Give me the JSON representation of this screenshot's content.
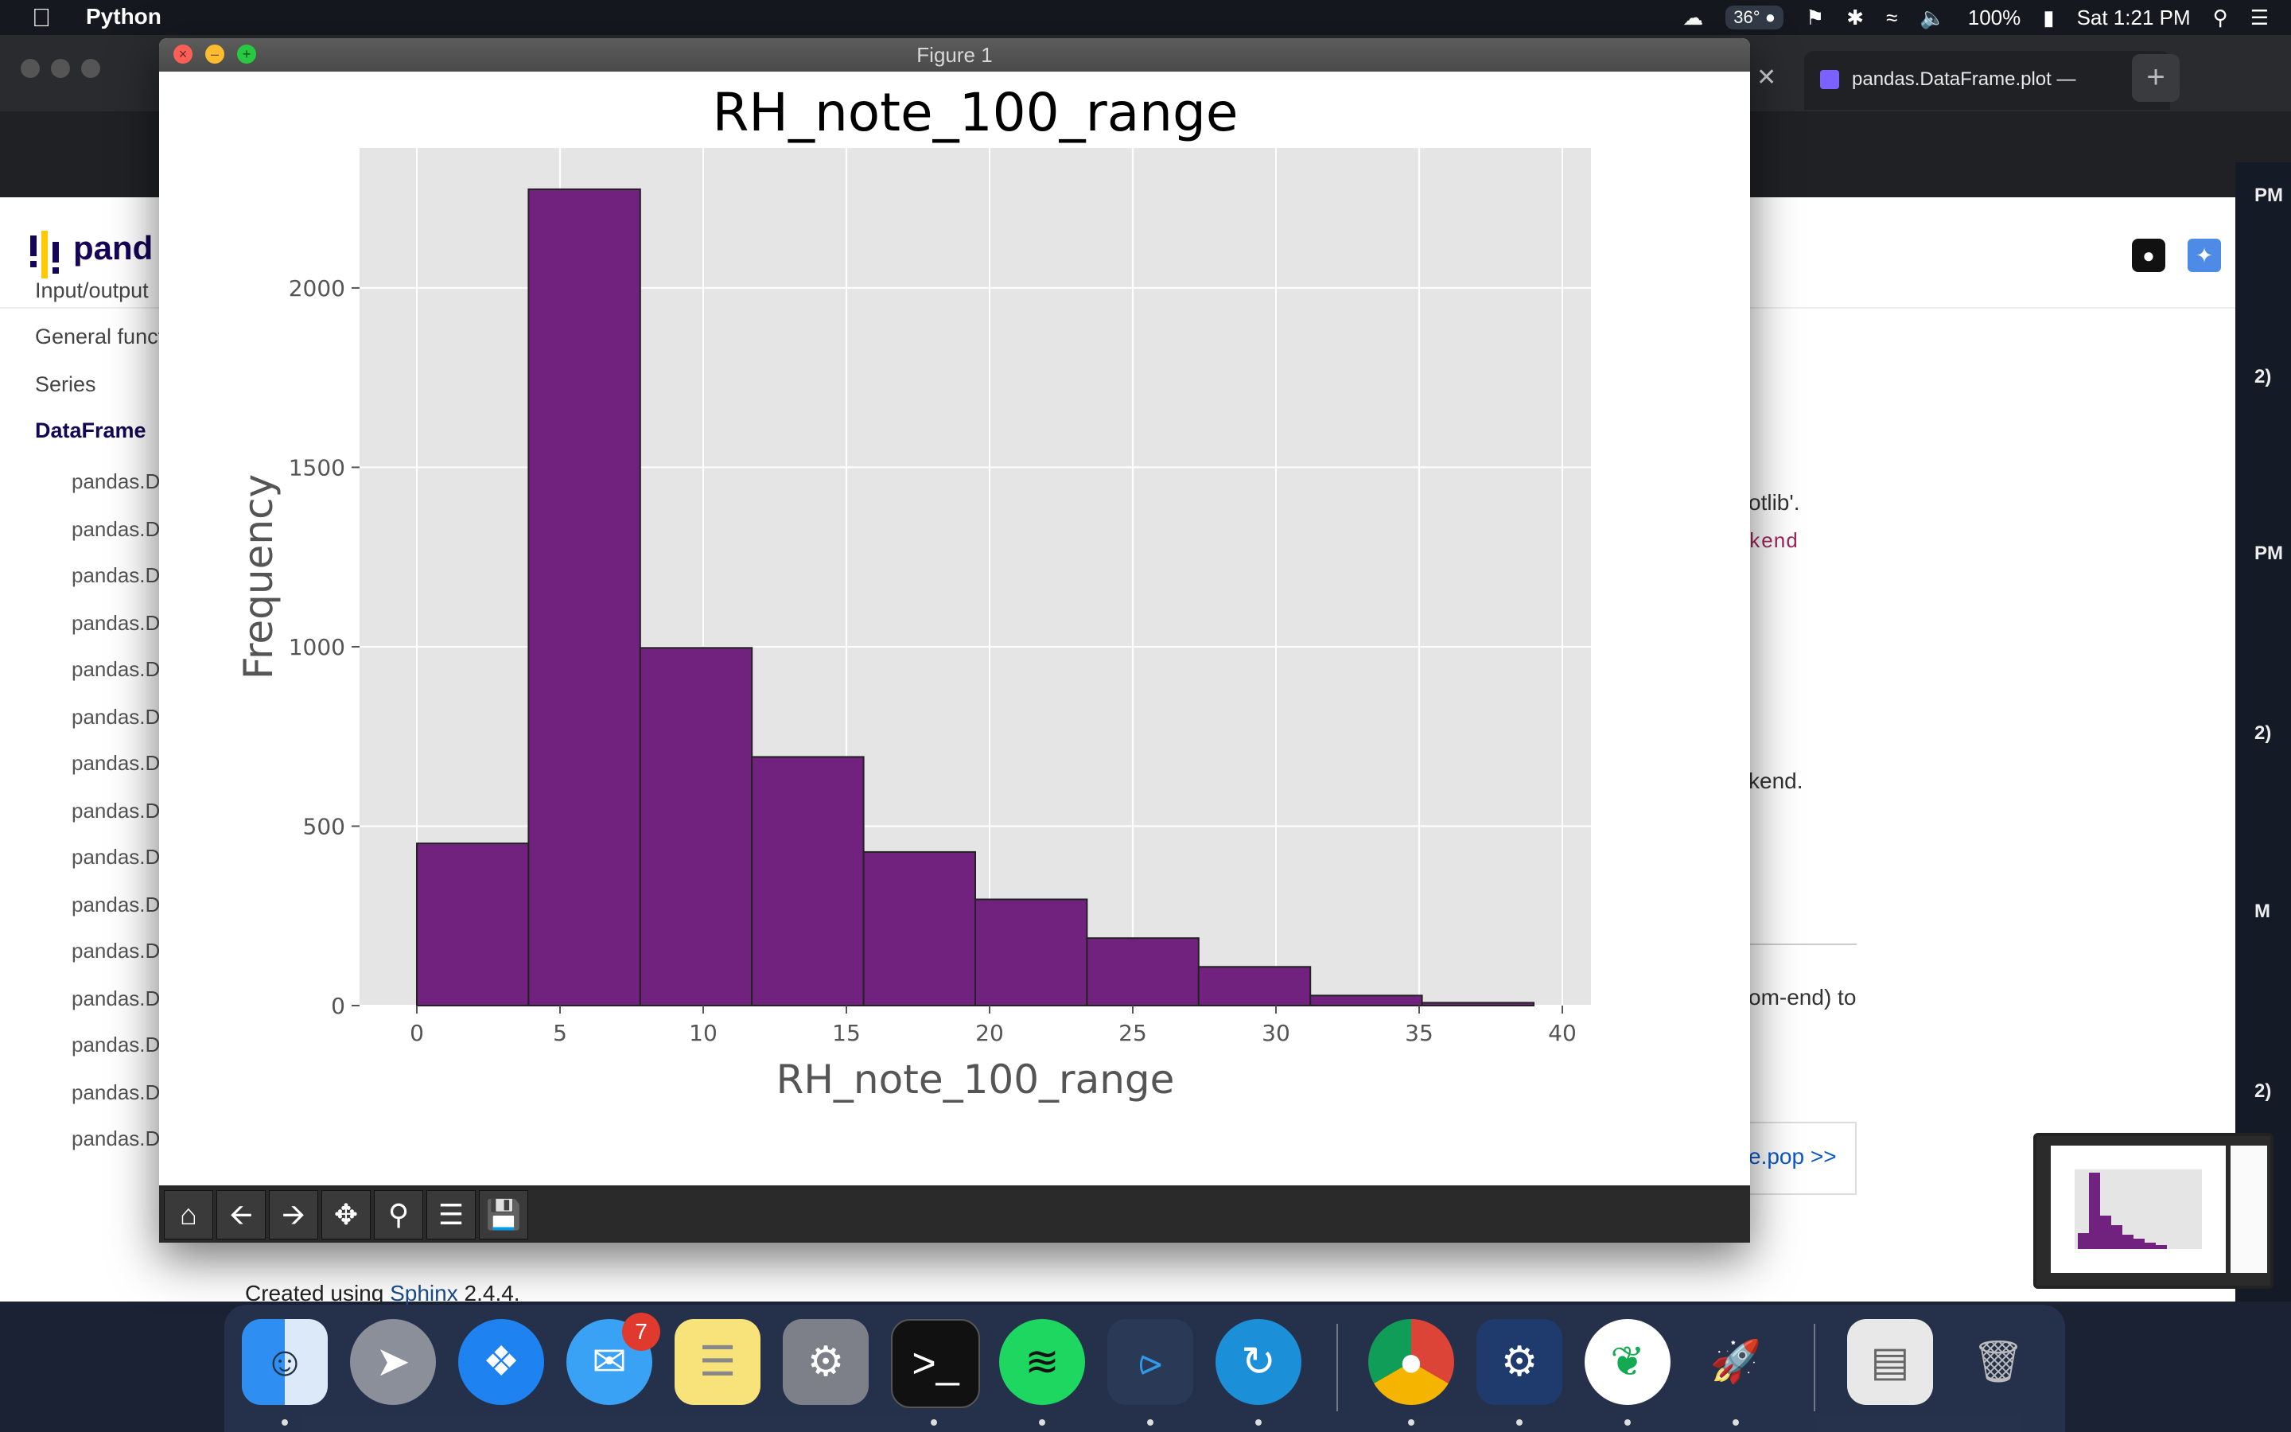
{
  "menubar": {
    "app_name": "Python",
    "temperature": "36°",
    "battery": "100%",
    "clock": "Sat 1:21 PM"
  },
  "browser": {
    "tab_title": "pandas.DataFrame.plot —",
    "site_name": "pand",
    "sidebar": {
      "items": [
        "Input/output",
        "General funct",
        "Series",
        "DataFrame"
      ],
      "subitems": [
        "pandas.D",
        "pandas.D",
        "pandas.D",
        "pandas.D",
        "pandas.D",
        "pandas.D",
        "pandas.D",
        "pandas.D",
        "pandas.D",
        "pandas.D",
        "pandas.D",
        "pandas.D",
        "pandas.D",
        "pandas.D",
        "pandas.D"
      ]
    },
    "content_fragments": {
      "line1": "otlib'.",
      "line2": "kend",
      "line3": "kend.",
      "line4": "om-end) to",
      "next_link": "e.pop >>"
    },
    "footer": {
      "prefix": "Created using ",
      "link": "Sphinx",
      "suffix": " 2.4.4."
    },
    "edge_fragments": [
      "PM",
      "2)",
      "PM",
      "2)",
      "M",
      "2)"
    ]
  },
  "figure": {
    "window_title": "Figure 1",
    "toolbar": [
      "home-icon",
      "back-icon",
      "forward-icon",
      "pan-icon",
      "zoom-icon",
      "configure-icon",
      "save-icon"
    ]
  },
  "chart_data": {
    "type": "bar",
    "title": "RH_note_100_range",
    "xlabel": "RH_note_100_range",
    "ylabel": "Frequency",
    "bin_edges": [
      0,
      3.9,
      7.8,
      11.7,
      15.6,
      19.5,
      23.4,
      27.3,
      31.2,
      35.1,
      39
    ],
    "values": [
      452,
      2275,
      997,
      693,
      428,
      296,
      188,
      108,
      28,
      8
    ],
    "xlim": [
      -2,
      41
    ],
    "ylim": [
      0,
      2390
    ],
    "xticks": [
      0,
      5,
      10,
      15,
      20,
      25,
      30,
      35,
      40
    ],
    "yticks": [
      0,
      500,
      1000,
      1500,
      2000
    ],
    "bar_color": "#71227f",
    "background": "#e5e5e5",
    "grid": true
  },
  "dock": {
    "messages_badge": "7"
  }
}
